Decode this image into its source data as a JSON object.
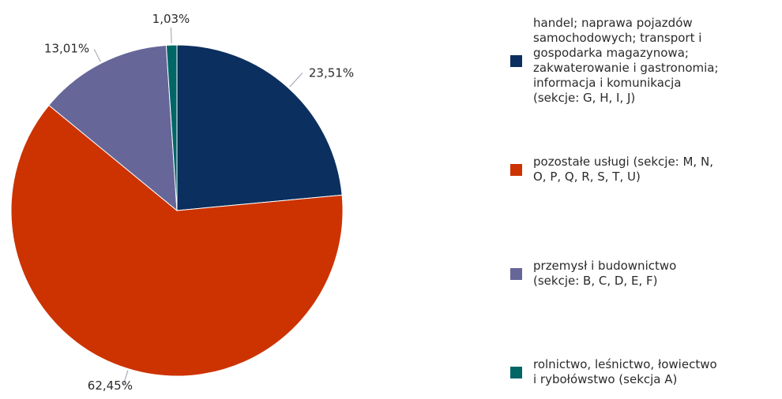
{
  "chart_data": {
    "type": "pie",
    "title": "",
    "slices": [
      {
        "label": "handel; naprawa pojazdów\nsamochodowych; transport i\ngospodarka magazynowa;\nzakwaterowanie i gastronomia;\ninformacja i komunikacja\n(sekcje: G, H, I, J)",
        "value": 23.51,
        "display": "23,51%",
        "color": "#0b2f5e"
      },
      {
        "label": "pozostałe usługi (sekcje: M, N,\nO, P, Q, R, S, T, U)",
        "value": 62.45,
        "display": "62,45%",
        "color": "#cc3300"
      },
      {
        "label": "przemysł i budownictwo\n(sekcje: B, C, D, E, F)",
        "value": 13.01,
        "display": "13,01%",
        "color": "#666699"
      },
      {
        "label": "rolnictwo, leśnictwo, łowiectwo\ni rybołówstwo (sekcja A)",
        "value": 1.03,
        "display": "1,03%",
        "color": "#006666"
      }
    ],
    "legend_position": "right"
  }
}
